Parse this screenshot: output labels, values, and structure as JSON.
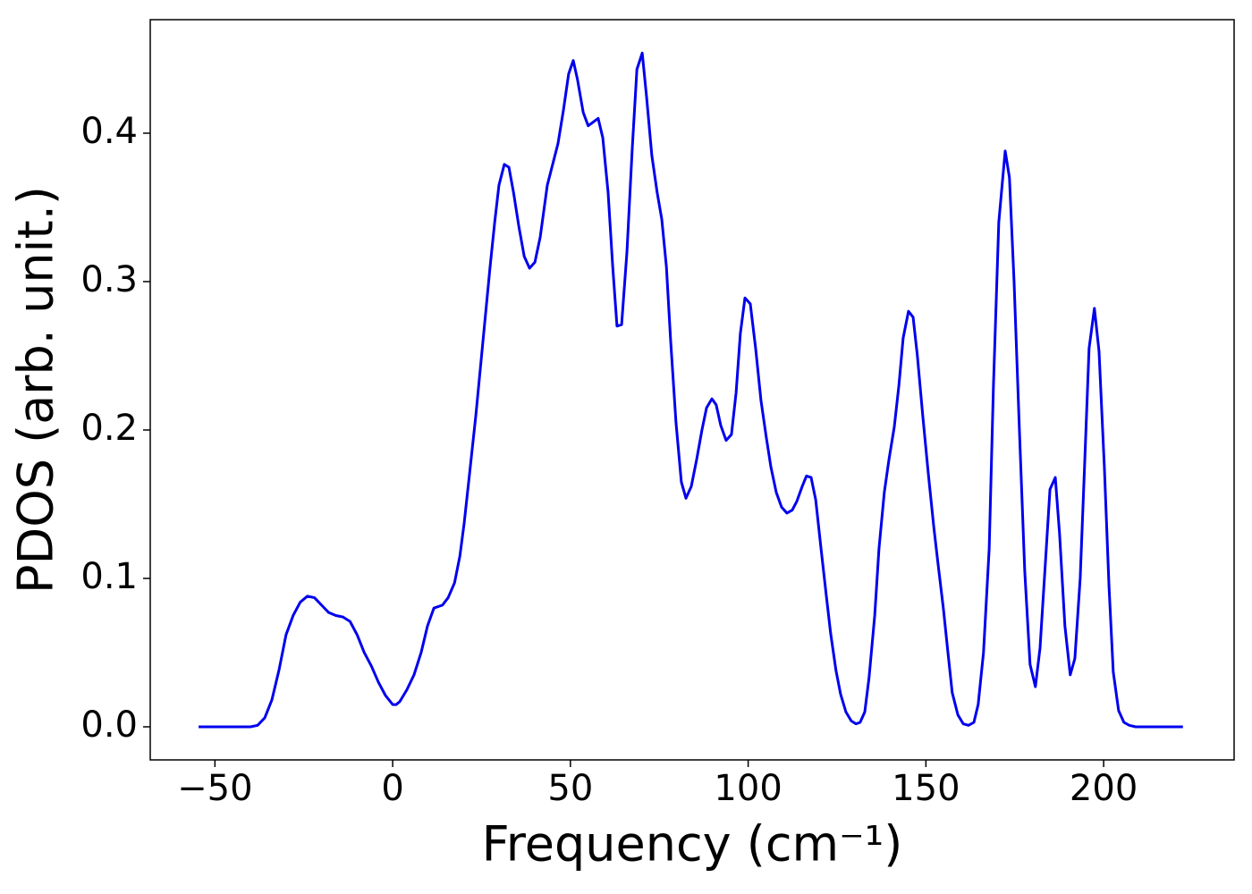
{
  "chart_data": {
    "type": "line",
    "xlabel": "Frequency (cm⁻¹)",
    "ylabel": "PDOS (arb. unit.)",
    "x": [
      -54.6,
      -40,
      -38,
      -36,
      -34,
      -32,
      -30,
      -28,
      -26,
      -24,
      -22,
      -20,
      -18,
      -16,
      -14,
      -12,
      -10,
      -8,
      -6,
      -4,
      -2,
      0,
      1,
      2,
      4,
      6,
      8,
      9.8,
      11.6,
      14,
      15.6,
      17.4,
      18.9,
      20.1,
      21.6,
      23.4,
      25.4,
      27.4,
      28.7,
      29.9,
      31.4,
      32.7,
      34,
      35.5,
      37,
      38.5,
      40,
      41.5,
      43.5,
      46.5,
      48,
      49.5,
      50.8,
      52,
      53.6,
      55,
      57.8,
      59.1,
      60.6,
      61.9,
      63.1,
      64.4,
      65.9,
      67.4,
      68.7,
      70.2,
      71.4,
      72.9,
      74.4,
      75.7,
      77,
      78.2,
      79.7,
      81.2,
      82.5,
      84,
      85.5,
      87,
      88.3,
      89.8,
      91,
      92.3,
      93.8,
      95.3,
      96.6,
      97.8,
      99.1,
      100.6,
      102.1,
      103.6,
      105.1,
      106.4,
      107.9,
      109.4,
      110.9,
      112.4,
      113.7,
      115.2,
      116.4,
      117.7,
      119,
      120.5,
      122,
      123.2,
      124.7,
      126,
      127.5,
      129,
      130.3,
      131.5,
      132.8,
      134,
      135.6,
      136.8,
      138.3,
      139.6,
      141.1,
      142.4,
      143.6,
      145.1,
      146.4,
      147.6,
      149.1,
      150.7,
      152.2,
      153.4,
      154.9,
      156.2,
      157.4,
      159,
      160.5,
      162,
      163.5,
      164.7,
      166.2,
      167.8,
      169,
      170.5,
      172.3,
      173.5,
      174.8,
      176.3,
      177.8,
      179.3,
      180.8,
      182.1,
      183.6,
      184.9,
      186.4,
      187.6,
      189.1,
      190.6,
      191.9,
      193.4,
      194.7,
      195.9,
      197.4,
      198.7,
      200.2,
      201.5,
      202.7,
      204.2,
      205.7,
      207.2,
      209,
      222.3
    ],
    "series": [
      {
        "color": "#0000ee",
        "values": [
          0,
          0,
          0.001,
          0.006,
          0.018,
          0.038,
          0.062,
          0.075,
          0.084,
          0.088,
          0.087,
          0.082,
          0.077,
          0.075,
          0.074,
          0.071,
          0.062,
          0.05,
          0.041,
          0.03,
          0.021,
          0.015,
          0.015,
          0.017,
          0.025,
          0.035,
          0.05,
          0.068,
          0.08,
          0.082,
          0.087,
          0.097,
          0.115,
          0.137,
          0.17,
          0.21,
          0.26,
          0.31,
          0.34,
          0.365,
          0.379,
          0.377,
          0.36,
          0.337,
          0.317,
          0.309,
          0.313,
          0.33,
          0.365,
          0.393,
          0.415,
          0.44,
          0.449,
          0.436,
          0.414,
          0.405,
          0.41,
          0.397,
          0.36,
          0.31,
          0.27,
          0.271,
          0.32,
          0.39,
          0.443,
          0.454,
          0.425,
          0.385,
          0.36,
          0.342,
          0.31,
          0.26,
          0.205,
          0.165,
          0.154,
          0.162,
          0.18,
          0.2,
          0.215,
          0.221,
          0.217,
          0.203,
          0.193,
          0.197,
          0.225,
          0.265,
          0.289,
          0.285,
          0.255,
          0.22,
          0.195,
          0.175,
          0.158,
          0.148,
          0.144,
          0.146,
          0.152,
          0.162,
          0.169,
          0.168,
          0.153,
          0.12,
          0.088,
          0.063,
          0.038,
          0.022,
          0.01,
          0.004,
          0.002,
          0.003,
          0.01,
          0.033,
          0.075,
          0.12,
          0.158,
          0.18,
          0.202,
          0.23,
          0.262,
          0.28,
          0.276,
          0.25,
          0.21,
          0.17,
          0.135,
          0.11,
          0.08,
          0.05,
          0.023,
          0.008,
          0.002,
          0.001,
          0.003,
          0.015,
          0.05,
          0.12,
          0.23,
          0.34,
          0.388,
          0.37,
          0.3,
          0.2,
          0.105,
          0.042,
          0.027,
          0.053,
          0.11,
          0.16,
          0.168,
          0.13,
          0.068,
          0.035,
          0.046,
          0.1,
          0.18,
          0.255,
          0.282,
          0.253,
          0.175,
          0.095,
          0.037,
          0.011,
          0.003,
          0.001,
          0,
          0
        ]
      }
    ],
    "xlim": [
      -68.2,
      236.7
    ],
    "xticks": [
      {
        "value": -50,
        "label": "−50"
      },
      0,
      50,
      100,
      150,
      200
    ],
    "ylim": [
      -0.0223,
      0.4765
    ],
    "yticks": [
      {
        "value": 0,
        "label": "0.0"
      },
      0.1,
      0.2,
      0.3,
      0.4
    ],
    "grid": false
  }
}
